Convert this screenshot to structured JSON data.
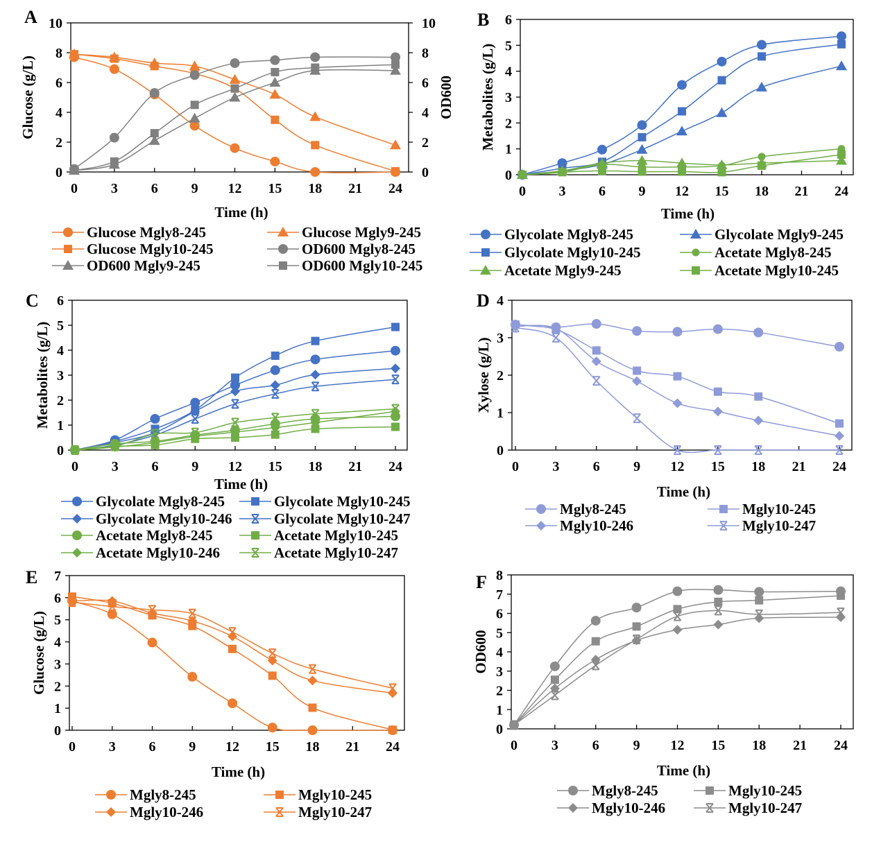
{
  "chart_data": [
    {
      "panel": "A",
      "type": "line",
      "xlabel": "Time (h)",
      "ylabel": "Glucose (g/L)",
      "y2label": "OD600",
      "x": [
        0,
        3,
        6,
        9,
        12,
        15,
        18,
        24
      ],
      "xticks": [
        0,
        3,
        6,
        9,
        12,
        15,
        18,
        21,
        24
      ],
      "ylim": [
        0,
        10
      ],
      "yticks": [
        0,
        2,
        4,
        6,
        8,
        10
      ],
      "y2lim": [
        0,
        10
      ],
      "y2ticks": [
        0,
        2,
        4,
        6,
        8,
        10
      ],
      "grid": false,
      "legend": "bottom",
      "series": [
        {
          "name": "Glucose Mgly8-245",
          "values": [
            7.7,
            6.9,
            5.2,
            3.1,
            1.6,
            0.7,
            0,
            0
          ],
          "color": "#ED7D31",
          "marker": "circle",
          "axis": "left"
        },
        {
          "name": "Glucose Mgly9-245",
          "values": [
            7.9,
            7.7,
            7.3,
            7.1,
            6.2,
            5.2,
            3.7,
            1.8
          ],
          "color": "#ED7D31",
          "marker": "triangle",
          "axis": "left"
        },
        {
          "name": "Glucose Mgly10-245",
          "values": [
            7.9,
            7.6,
            7.1,
            6.6,
            5.6,
            3.5,
            1.8,
            0.05
          ],
          "color": "#ED7D31",
          "marker": "square",
          "axis": "left"
        },
        {
          "name": "OD600 Mgly8-245",
          "values": [
            0.2,
            2.3,
            5.3,
            6.5,
            7.3,
            7.5,
            7.7,
            7.7
          ],
          "color": "#808080",
          "marker": "circle",
          "axis": "right"
        },
        {
          "name": "OD600 Mgly9-245",
          "values": [
            0.1,
            0.5,
            2.1,
            3.6,
            5.0,
            6.0,
            6.8,
            6.8
          ],
          "color": "#808080",
          "marker": "triangle",
          "axis": "right"
        },
        {
          "name": "OD600 Mgly10-245",
          "values": [
            0.1,
            0.7,
            2.6,
            4.5,
            5.6,
            6.7,
            7.0,
            7.2
          ],
          "color": "#808080",
          "marker": "square",
          "axis": "right"
        }
      ]
    },
    {
      "panel": "B",
      "type": "line",
      "xlabel": "Time (h)",
      "ylabel": "Metabolites (g/L)",
      "x": [
        0,
        3,
        6,
        9,
        12,
        15,
        18,
        24
      ],
      "xticks": [
        0,
        3,
        6,
        9,
        12,
        15,
        18,
        21,
        24
      ],
      "ylim": [
        0,
        6
      ],
      "yticks": [
        0,
        1,
        2,
        3,
        4,
        5,
        6
      ],
      "grid": false,
      "legend": "bottom",
      "series": [
        {
          "name": "Glycolate Mgly8-245",
          "values": [
            0,
            0.45,
            0.97,
            1.92,
            3.47,
            4.37,
            5.02,
            5.35
          ],
          "color": "#4472C4",
          "marker": "circle"
        },
        {
          "name": "Glycolate Mgly9-245",
          "values": [
            0,
            0.15,
            0.4,
            0.97,
            1.68,
            2.39,
            3.38,
            4.2
          ],
          "color": "#4472C4",
          "marker": "triangle"
        },
        {
          "name": "Glycolate Mgly10-245",
          "values": [
            0,
            0.25,
            0.5,
            1.45,
            2.45,
            3.65,
            4.57,
            5.04
          ],
          "color": "#4472C4",
          "marker": "square"
        },
        {
          "name": "Acetate Mgly8-245",
          "values": [
            0,
            0.1,
            0.4,
            0.3,
            0.3,
            0.35,
            0.7,
            1.0
          ],
          "color": "#70AD47",
          "marker": "circle-small"
        },
        {
          "name": "Acetate Mgly9-245",
          "values": [
            0,
            0.15,
            0.45,
            0.55,
            0.45,
            0.38,
            0.45,
            0.55
          ],
          "color": "#70AD47",
          "marker": "triangle"
        },
        {
          "name": "Acetate Mgly10-245",
          "values": [
            0,
            0.1,
            0.15,
            0.12,
            0.12,
            0.1,
            0.35,
            0.78
          ],
          "color": "#70AD47",
          "marker": "square"
        }
      ]
    },
    {
      "panel": "C",
      "type": "line",
      "xlabel": "Time (h)",
      "ylabel": "Metabolites (g/L)",
      "x": [
        0,
        3,
        6,
        9,
        12,
        15,
        18,
        24
      ],
      "xticks": [
        0,
        3,
        6,
        9,
        12,
        15,
        18,
        21,
        24
      ],
      "ylim": [
        0,
        6
      ],
      "yticks": [
        0,
        1,
        2,
        3,
        4,
        5,
        6
      ],
      "grid": false,
      "legend": "bottom",
      "series": [
        {
          "name": "Glycolate Mgly8-245",
          "values": [
            0,
            0.4,
            1.25,
            1.9,
            2.6,
            3.2,
            3.63,
            3.98
          ],
          "color": "#4472C4",
          "marker": "circle"
        },
        {
          "name": "Glycolate Mgly10-245",
          "values": [
            0,
            0.35,
            0.85,
            1.6,
            2.9,
            3.78,
            4.37,
            4.93
          ],
          "color": "#4472C4",
          "marker": "square"
        },
        {
          "name": "Glycolate Mgly10-246",
          "values": [
            0,
            0.3,
            0.7,
            1.55,
            2.35,
            2.6,
            3.02,
            3.27
          ],
          "color": "#4472C4",
          "marker": "diamond"
        },
        {
          "name": "Glycolate Mgly10-247",
          "values": [
            0,
            0.2,
            0.6,
            1.25,
            1.85,
            2.25,
            2.55,
            2.83
          ],
          "color": "#4472C4",
          "marker": "star"
        },
        {
          "name": "Acetate Mgly8-245",
          "values": [
            0,
            0.25,
            0.35,
            0.6,
            0.8,
            1.05,
            1.25,
            1.35
          ],
          "color": "#70AD47",
          "marker": "circle"
        },
        {
          "name": "Acetate Mgly10-245",
          "values": [
            0,
            0.15,
            0.2,
            0.45,
            0.5,
            0.62,
            0.85,
            0.93
          ],
          "color": "#70AD47",
          "marker": "square"
        },
        {
          "name": "Acetate Mgly10-246",
          "values": [
            0,
            0.12,
            0.3,
            0.55,
            0.72,
            0.9,
            1.1,
            1.55
          ],
          "color": "#70AD47",
          "marker": "diamond"
        },
        {
          "name": "Acetate Mgly10-247",
          "values": [
            0,
            0.15,
            0.65,
            0.7,
            1.1,
            1.3,
            1.45,
            1.65
          ],
          "color": "#70AD47",
          "marker": "star"
        }
      ]
    },
    {
      "panel": "D",
      "type": "line",
      "xlabel": "Time (h)",
      "ylabel": "Xylose (g/L)",
      "x": [
        0,
        3,
        6,
        9,
        12,
        15,
        18,
        24
      ],
      "xticks": [
        0,
        3,
        6,
        9,
        12,
        15,
        18,
        21,
        24
      ],
      "ylim": [
        0,
        4
      ],
      "yticks": [
        0,
        1,
        2,
        3,
        4
      ],
      "grid": false,
      "legend": "bottom",
      "series": [
        {
          "name": "Mgly8-245",
          "values": [
            3.35,
            3.28,
            3.37,
            3.18,
            3.16,
            3.23,
            3.14,
            2.76
          ],
          "color": "#8E9BD8",
          "marker": "circle"
        },
        {
          "name": "Mgly10-245",
          "values": [
            3.35,
            3.22,
            2.66,
            2.12,
            1.97,
            1.56,
            1.43,
            0.71
          ],
          "color": "#8E9BD8",
          "marker": "square"
        },
        {
          "name": "Mgly10-246",
          "values": [
            3.3,
            3.25,
            2.37,
            1.84,
            1.25,
            1.03,
            0.79,
            0.38
          ],
          "color": "#8E9BD8",
          "marker": "diamond"
        },
        {
          "name": "Mgly10-247",
          "values": [
            3.27,
            3.0,
            1.85,
            0.85,
            0,
            0,
            0,
            0
          ],
          "color": "#8E9BD8",
          "marker": "star"
        }
      ]
    },
    {
      "panel": "E",
      "type": "line",
      "xlabel": "Time (h)",
      "ylabel": "Glucose (g/L)",
      "x": [
        0,
        3,
        6,
        9,
        12,
        15,
        18,
        24
      ],
      "xticks": [
        0,
        3,
        6,
        9,
        12,
        15,
        18,
        21,
        24
      ],
      "ylim": [
        0,
        7
      ],
      "yticks": [
        0,
        1,
        2,
        3,
        4,
        5,
        6,
        7
      ],
      "grid": false,
      "legend": "bottom",
      "series": [
        {
          "name": "Mgly8-245",
          "values": [
            5.85,
            5.25,
            3.97,
            2.42,
            1.22,
            0.12,
            0,
            0
          ],
          "color": "#ED7D31",
          "marker": "circle"
        },
        {
          "name": "Mgly10-245",
          "values": [
            6.05,
            5.75,
            5.2,
            4.72,
            3.68,
            2.47,
            1.02,
            0.02
          ],
          "color": "#ED7D31",
          "marker": "square"
        },
        {
          "name": "Mgly10-246",
          "values": [
            5.85,
            5.85,
            5.3,
            4.95,
            4.25,
            3.15,
            2.25,
            1.68
          ],
          "color": "#ED7D31",
          "marker": "diamond"
        },
        {
          "name": "Mgly10-247",
          "values": [
            5.8,
            5.6,
            5.45,
            5.28,
            4.45,
            3.48,
            2.77,
            1.9
          ],
          "color": "#ED7D31",
          "marker": "star"
        }
      ]
    },
    {
      "panel": "F",
      "type": "line",
      "xlabel": "Time (h)",
      "ylabel": "OD600",
      "x": [
        0,
        3,
        6,
        9,
        12,
        15,
        18,
        24
      ],
      "xticks": [
        0,
        3,
        6,
        9,
        12,
        15,
        18,
        21,
        24
      ],
      "ylim": [
        0,
        8
      ],
      "yticks": [
        0,
        1,
        2,
        3,
        4,
        5,
        6,
        7,
        8
      ],
      "grid": false,
      "legend": "bottom",
      "series": [
        {
          "name": "Mgly8-245",
          "values": [
            0.2,
            3.25,
            5.62,
            6.3,
            7.15,
            7.22,
            7.12,
            7.15
          ],
          "color": "#8C8C8C",
          "marker": "circle"
        },
        {
          "name": "Mgly10-245",
          "values": [
            0.2,
            2.55,
            4.55,
            5.32,
            6.22,
            6.6,
            6.68,
            6.92
          ],
          "color": "#8C8C8C",
          "marker": "square"
        },
        {
          "name": "Mgly10-246",
          "values": [
            0.2,
            2.1,
            3.6,
            4.6,
            5.15,
            5.42,
            5.75,
            5.8
          ],
          "color": "#8C8C8C",
          "marker": "diamond"
        },
        {
          "name": "Mgly10-247",
          "values": [
            0.2,
            1.75,
            3.3,
            4.65,
            5.85,
            6.15,
            5.95,
            6.05
          ],
          "color": "#8C8C8C",
          "marker": "star"
        }
      ]
    }
  ]
}
